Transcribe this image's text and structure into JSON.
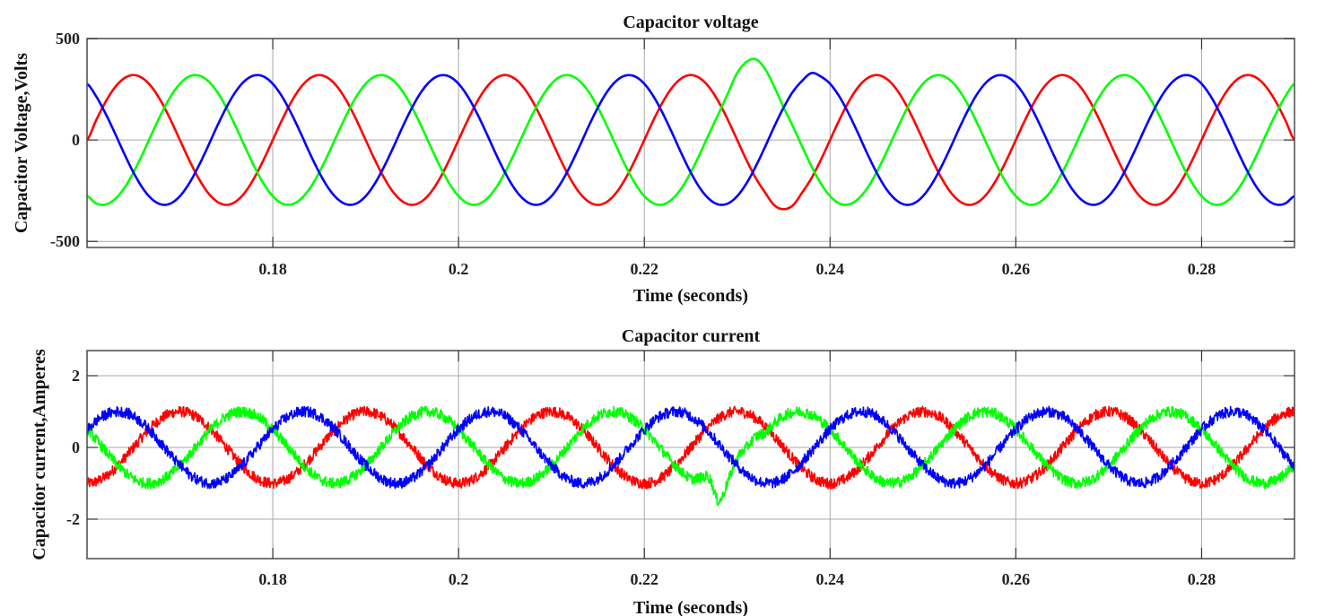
{
  "chart_data": [
    {
      "type": "line",
      "title": "Capacitor voltage",
      "xlabel": "Time (seconds)",
      "ylabel": "Capacitor Voltage,Volts",
      "xlim": [
        0.16,
        0.29
      ],
      "ylim": [
        -530,
        500
      ],
      "xticks": [
        0.18,
        0.2,
        0.22,
        0.24,
        0.26,
        0.28
      ],
      "xtick_labels": [
        "0.18",
        "0.2",
        "0.22",
        "0.24",
        "0.26",
        "0.28"
      ],
      "yticks": [
        500,
        0,
        -500
      ],
      "ytick_labels": [
        "500",
        "0",
        "-500"
      ],
      "grid": true,
      "x": [
        0.16,
        0.161,
        0.162,
        0.163,
        0.164,
        0.165,
        0.166,
        0.167,
        0.168,
        0.169,
        0.17,
        0.171,
        0.172,
        0.173,
        0.174,
        0.175,
        0.176,
        0.177,
        0.178,
        0.179,
        0.18,
        0.181,
        0.182,
        0.183,
        0.184,
        0.185,
        0.186,
        0.187,
        0.188,
        0.189,
        0.19,
        0.191,
        0.192,
        0.193,
        0.194,
        0.195,
        0.196,
        0.197,
        0.198,
        0.199,
        0.2,
        0.201,
        0.202,
        0.203,
        0.204,
        0.205,
        0.206,
        0.207,
        0.208,
        0.209,
        0.21,
        0.211,
        0.212,
        0.213,
        0.214,
        0.215,
        0.216,
        0.217,
        0.218,
        0.219,
        0.22,
        0.221,
        0.222,
        0.223,
        0.224,
        0.225,
        0.226,
        0.227,
        0.228,
        0.229,
        0.23,
        0.231,
        0.232,
        0.233,
        0.234,
        0.235,
        0.236,
        0.237,
        0.238,
        0.239,
        0.24,
        0.241,
        0.242,
        0.243,
        0.244,
        0.245,
        0.246,
        0.247,
        0.248,
        0.249,
        0.25,
        0.251,
        0.252,
        0.253,
        0.254,
        0.255,
        0.256,
        0.257,
        0.258,
        0.259,
        0.26,
        0.261,
        0.262,
        0.263,
        0.264,
        0.265,
        0.266,
        0.267,
        0.268,
        0.269,
        0.27,
        0.271,
        0.272,
        0.273,
        0.274,
        0.275,
        0.276,
        0.277,
        0.278,
        0.279,
        0.28,
        0.281,
        0.282,
        0.283,
        0.284,
        0.285,
        0.286,
        0.287,
        0.288,
        0.289,
        0.29
      ],
      "series": [
        {
          "color": "#ff0000",
          "values": [
            0,
            99,
            188,
            259,
            304,
            320,
            304,
            259,
            188,
            99,
            0,
            -99,
            -188,
            -259,
            -304,
            -320,
            -304,
            -259,
            -188,
            -99,
            0,
            99,
            188,
            259,
            304,
            320,
            304,
            259,
            188,
            99,
            0,
            -99,
            -188,
            -259,
            -304,
            -320,
            -304,
            -259,
            -188,
            -99,
            0,
            99,
            188,
            259,
            304,
            320,
            304,
            259,
            188,
            99,
            0,
            -99,
            -188,
            -259,
            -304,
            -320,
            -304,
            -259,
            -188,
            -99,
            0,
            99,
            188,
            259,
            304,
            320,
            304,
            259,
            188,
            99,
            0,
            -99,
            -188,
            -259,
            -322,
            -341,
            -322,
            -259,
            -188,
            -99,
            0,
            99,
            188,
            259,
            304,
            320,
            304,
            259,
            188,
            99,
            0,
            -99,
            -188,
            -259,
            -304,
            -320,
            -304,
            -259,
            -188,
            -99,
            0,
            99,
            188,
            259,
            304,
            320,
            304,
            259,
            188,
            99,
            0,
            -99,
            -188,
            -259,
            -304,
            -320,
            -304,
            -259,
            -188,
            -99,
            0,
            99,
            188,
            259,
            304,
            320,
            304,
            259,
            188,
            99,
            0
          ]
        },
        {
          "color": "#00ff00",
          "values": [
            -277,
            -313,
            -318,
            -292,
            -238,
            -160,
            -67,
            33,
            130,
            214,
            277,
            313,
            318,
            292,
            238,
            160,
            67,
            -33,
            -130,
            -214,
            -277,
            -313,
            -318,
            -292,
            -238,
            -160,
            -67,
            33,
            130,
            214,
            277,
            313,
            318,
            292,
            238,
            160,
            67,
            -33,
            -130,
            -214,
            -277,
            -313,
            -318,
            -292,
            -238,
            -160,
            -67,
            33,
            130,
            214,
            277,
            313,
            318,
            292,
            238,
            160,
            67,
            -33,
            -130,
            -214,
            -277,
            -313,
            -318,
            -292,
            -238,
            -160,
            -67,
            33,
            130,
            230,
            330,
            385,
            398,
            350,
            262,
            160,
            67,
            -33,
            -130,
            -214,
            -277,
            -313,
            -318,
            -292,
            -238,
            -160,
            -67,
            33,
            130,
            214,
            277,
            313,
            318,
            292,
            238,
            160,
            67,
            -33,
            -130,
            -214,
            -277,
            -313,
            -318,
            -292,
            -238,
            -160,
            -67,
            33,
            130,
            214,
            277,
            313,
            318,
            292,
            238,
            160,
            67,
            -33,
            -130,
            -214,
            -277,
            -313,
            -318,
            -292,
            -238,
            -160,
            -67,
            33,
            130,
            214,
            277
          ]
        },
        {
          "color": "#0000ff",
          "values": [
            277,
            214,
            130,
            34,
            -67,
            -160,
            -238,
            -292,
            -318,
            -313,
            -277,
            -214,
            -130,
            -34,
            67,
            160,
            238,
            292,
            318,
            313,
            277,
            214,
            130,
            34,
            -67,
            -160,
            -238,
            -292,
            -318,
            -313,
            -277,
            -214,
            -130,
            -34,
            67,
            160,
            238,
            292,
            318,
            313,
            277,
            214,
            130,
            34,
            -67,
            -160,
            -238,
            -292,
            -318,
            -313,
            -277,
            -214,
            -130,
            -34,
            67,
            160,
            238,
            292,
            318,
            313,
            277,
            214,
            130,
            34,
            -67,
            -160,
            -238,
            -292,
            -318,
            -313,
            -277,
            -214,
            -130,
            -34,
            67,
            160,
            238,
            292,
            330,
            313,
            277,
            214,
            130,
            34,
            -67,
            -160,
            -238,
            -292,
            -318,
            -313,
            -277,
            -214,
            -130,
            -34,
            67,
            160,
            238,
            292,
            318,
            313,
            277,
            214,
            130,
            34,
            -67,
            -160,
            -238,
            -292,
            -318,
            -313,
            -277,
            -214,
            -130,
            -34,
            67,
            160,
            238,
            292,
            318,
            313,
            277,
            214,
            130,
            34,
            -67,
            -160,
            -238,
            -292,
            -318,
            -313,
            -277
          ]
        }
      ]
    },
    {
      "type": "line",
      "title": "Capacitor current",
      "xlabel": "Time (seconds)",
      "ylabel": "Capacitor current,Amperes",
      "xlim": [
        0.16,
        0.29
      ],
      "ylim": [
        -3.1,
        2.7
      ],
      "xticks": [
        0.18,
        0.2,
        0.22,
        0.24,
        0.26,
        0.28
      ],
      "xtick_labels": [
        "0.18",
        "0.2",
        "0.22",
        "0.24",
        "0.26",
        "0.28"
      ],
      "yticks": [
        2,
        0,
        -2
      ],
      "ytick_labels": [
        "2",
        "0",
        "-2"
      ],
      "grid": true,
      "ripple_amplitude": 0.15,
      "x": [
        0.16,
        0.161,
        0.162,
        0.163,
        0.164,
        0.165,
        0.166,
        0.167,
        0.168,
        0.169,
        0.17,
        0.171,
        0.172,
        0.173,
        0.174,
        0.175,
        0.176,
        0.177,
        0.178,
        0.179,
        0.18,
        0.181,
        0.182,
        0.183,
        0.184,
        0.185,
        0.186,
        0.187,
        0.188,
        0.189,
        0.19,
        0.191,
        0.192,
        0.193,
        0.194,
        0.195,
        0.196,
        0.197,
        0.198,
        0.199,
        0.2,
        0.201,
        0.202,
        0.203,
        0.204,
        0.205,
        0.206,
        0.207,
        0.208,
        0.209,
        0.21,
        0.211,
        0.212,
        0.213,
        0.214,
        0.215,
        0.216,
        0.217,
        0.218,
        0.219,
        0.22,
        0.221,
        0.222,
        0.223,
        0.224,
        0.225,
        0.226,
        0.227,
        0.228,
        0.229,
        0.23,
        0.231,
        0.232,
        0.233,
        0.234,
        0.235,
        0.236,
        0.237,
        0.238,
        0.239,
        0.24,
        0.241,
        0.242,
        0.243,
        0.244,
        0.245,
        0.246,
        0.247,
        0.248,
        0.249,
        0.25,
        0.251,
        0.252,
        0.253,
        0.254,
        0.255,
        0.256,
        0.257,
        0.258,
        0.259,
        0.26,
        0.261,
        0.262,
        0.263,
        0.264,
        0.265,
        0.266,
        0.267,
        0.268,
        0.269,
        0.27,
        0.271,
        0.272,
        0.273,
        0.274,
        0.275,
        0.276,
        0.277,
        0.278,
        0.279,
        0.28,
        0.281,
        0.282,
        0.283,
        0.284,
        0.285,
        0.286,
        0.287,
        0.288,
        0.289,
        0.29
      ],
      "series": [
        {
          "color": "#ff0000",
          "values": [
            -1,
            -0.95,
            -0.81,
            -0.59,
            -0.31,
            0,
            0.31,
            0.59,
            0.81,
            0.95,
            1,
            0.95,
            0.81,
            0.59,
            0.31,
            0,
            -0.31,
            -0.59,
            -0.81,
            -0.95,
            -1,
            -0.95,
            -0.81,
            -0.59,
            -0.31,
            0,
            0.31,
            0.59,
            0.81,
            0.95,
            1,
            0.95,
            0.81,
            0.59,
            0.31,
            0,
            -0.31,
            -0.59,
            -0.81,
            -0.95,
            -1,
            -0.95,
            -0.81,
            -0.59,
            -0.31,
            0,
            0.31,
            0.59,
            0.81,
            0.95,
            1,
            0.95,
            0.81,
            0.59,
            0.31,
            0,
            -0.31,
            -0.59,
            -0.81,
            -0.95,
            -1,
            -0.95,
            -0.81,
            -0.59,
            -0.31,
            0,
            0.31,
            0.59,
            0.81,
            0.95,
            1,
            0.95,
            0.81,
            0.59,
            0.31,
            0,
            -0.31,
            -0.59,
            -0.81,
            -0.95,
            -1,
            -0.95,
            -0.81,
            -0.59,
            -0.31,
            0,
            0.31,
            0.59,
            0.81,
            0.95,
            1,
            0.95,
            0.81,
            0.59,
            0.31,
            0,
            -0.31,
            -0.59,
            -0.81,
            -0.95,
            -1,
            -0.95,
            -0.81,
            -0.59,
            -0.31,
            0,
            0.31,
            0.59,
            0.81,
            0.95,
            1,
            0.95,
            0.81,
            0.59,
            0.31,
            0,
            -0.31,
            -0.59,
            -0.81,
            -0.95,
            -1,
            -0.95,
            -0.81,
            -0.59,
            -0.31,
            0,
            0.31,
            0.59,
            0.81,
            0.95,
            1
          ]
        },
        {
          "color": "#00ff00",
          "values": [
            0.5,
            0.21,
            -0.1,
            -0.41,
            -0.67,
            -0.87,
            -0.98,
            -0.99,
            -0.91,
            -0.74,
            -0.5,
            -0.21,
            0.1,
            0.41,
            0.67,
            0.87,
            0.98,
            0.99,
            0.91,
            0.74,
            0.5,
            0.21,
            -0.1,
            -0.41,
            -0.67,
            -0.87,
            -0.98,
            -0.99,
            -0.91,
            -0.74,
            -0.5,
            -0.21,
            0.1,
            0.41,
            0.67,
            0.87,
            0.98,
            0.99,
            0.91,
            0.74,
            0.5,
            0.21,
            -0.1,
            -0.41,
            -0.67,
            -0.87,
            -0.98,
            -0.99,
            -0.91,
            -0.74,
            -0.5,
            -0.21,
            0.1,
            0.41,
            0.67,
            0.87,
            0.98,
            0.99,
            0.91,
            0.74,
            0.5,
            0.21,
            -0.1,
            -0.41,
            -0.67,
            -0.87,
            -0.85,
            -0.85,
            -1.5,
            -0.95,
            -0.3,
            0,
            0.3,
            0.41,
            0.67,
            0.87,
            0.98,
            0.99,
            0.91,
            0.74,
            0.5,
            0.21,
            -0.1,
            -0.41,
            -0.67,
            -0.87,
            -0.98,
            -0.99,
            -0.91,
            -0.74,
            -0.5,
            -0.21,
            0.1,
            0.41,
            0.67,
            0.87,
            0.98,
            0.99,
            0.91,
            0.74,
            0.5,
            0.21,
            -0.1,
            -0.41,
            -0.67,
            -0.87,
            -0.98,
            -0.99,
            -0.91,
            -0.74,
            -0.5,
            -0.21,
            0.1,
            0.41,
            0.67,
            0.87,
            0.98,
            0.99,
            0.91,
            0.74,
            0.5,
            0.21,
            -0.1,
            -0.41,
            -0.67,
            -0.87,
            -0.98,
            -0.99,
            -0.91,
            -0.74,
            -0.5
          ]
        },
        {
          "color": "#0000ff",
          "values": [
            0.5,
            0.74,
            0.91,
            0.99,
            0.98,
            0.87,
            0.67,
            0.41,
            0.1,
            -0.21,
            -0.5,
            -0.74,
            -0.91,
            -0.99,
            -0.98,
            -0.87,
            -0.67,
            -0.41,
            -0.1,
            0.21,
            0.5,
            0.74,
            0.91,
            0.99,
            0.98,
            0.87,
            0.67,
            0.41,
            0.1,
            -0.21,
            -0.5,
            -0.74,
            -0.91,
            -0.99,
            -0.98,
            -0.87,
            -0.67,
            -0.41,
            -0.1,
            0.21,
            0.5,
            0.74,
            0.91,
            0.99,
            0.98,
            0.87,
            0.67,
            0.41,
            0.1,
            -0.21,
            -0.5,
            -0.74,
            -0.91,
            -0.99,
            -0.98,
            -0.87,
            -0.67,
            -0.41,
            -0.1,
            0.21,
            0.5,
            0.74,
            0.91,
            0.99,
            0.98,
            0.87,
            0.67,
            0.41,
            0.1,
            -0.21,
            -0.5,
            -0.74,
            -0.91,
            -0.99,
            -0.98,
            -0.87,
            -0.67,
            -0.41,
            -0.1,
            0.21,
            0.5,
            0.74,
            0.91,
            0.99,
            0.98,
            0.87,
            0.67,
            0.41,
            0.1,
            -0.21,
            -0.5,
            -0.74,
            -0.91,
            -0.99,
            -0.98,
            -0.87,
            -0.67,
            -0.41,
            -0.1,
            0.21,
            0.5,
            0.74,
            0.91,
            0.99,
            0.98,
            0.87,
            0.67,
            0.41,
            0.1,
            -0.21,
            -0.5,
            -0.74,
            -0.91,
            -0.99,
            -0.98,
            -0.87,
            -0.67,
            -0.41,
            -0.1,
            0.21,
            0.5,
            0.74,
            0.91,
            0.99,
            0.98,
            0.87,
            0.67,
            0.41,
            0.1,
            -0.21,
            -0.5
          ]
        }
      ]
    }
  ]
}
